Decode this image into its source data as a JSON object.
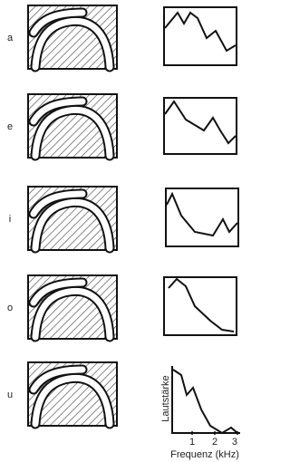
{
  "vowels": [
    "a",
    "e",
    "i",
    "o",
    "u"
  ],
  "loudness_axis_label": "Lautstärke",
  "frequency_axis": {
    "label": "Frequenz (kHz)",
    "ticks": [
      "1",
      "2",
      "3"
    ]
  }
}
